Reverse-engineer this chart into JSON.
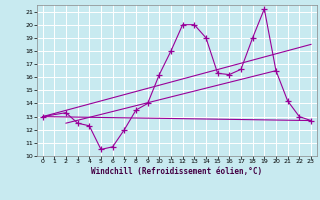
{
  "bg_color": "#c8eaf0",
  "line_color": "#990099",
  "grid_color": "#ffffff",
  "xlabel": "Windchill (Refroidissement éolien,°C)",
  "ylabel_ticks": [
    10,
    11,
    12,
    13,
    14,
    15,
    16,
    17,
    18,
    19,
    20,
    21
  ],
  "xlim": [
    -0.5,
    23.5
  ],
  "ylim": [
    10,
    21.5
  ],
  "x_ticks": [
    0,
    1,
    2,
    3,
    4,
    5,
    6,
    7,
    8,
    9,
    10,
    11,
    12,
    13,
    14,
    15,
    16,
    17,
    18,
    19,
    20,
    21,
    22,
    23
  ],
  "line1_x": [
    0,
    2,
    3,
    4,
    5,
    6,
    7,
    8,
    9,
    10,
    11,
    12,
    13,
    14,
    15,
    16,
    17,
    18,
    19,
    20,
    21,
    22,
    23
  ],
  "line1_y": [
    13.0,
    13.3,
    12.5,
    12.3,
    10.5,
    10.7,
    12.0,
    13.5,
    14.0,
    16.2,
    18.0,
    20.0,
    20.0,
    19.0,
    16.3,
    16.2,
    16.6,
    19.0,
    21.2,
    16.5,
    14.2,
    13.0,
    12.7
  ],
  "line2_x": [
    0,
    23
  ],
  "line2_y": [
    13.0,
    18.5
  ],
  "line3_x": [
    0,
    23
  ],
  "line3_y": [
    13.0,
    12.7
  ],
  "line4_x": [
    2,
    20
  ],
  "line4_y": [
    12.5,
    16.5
  ]
}
